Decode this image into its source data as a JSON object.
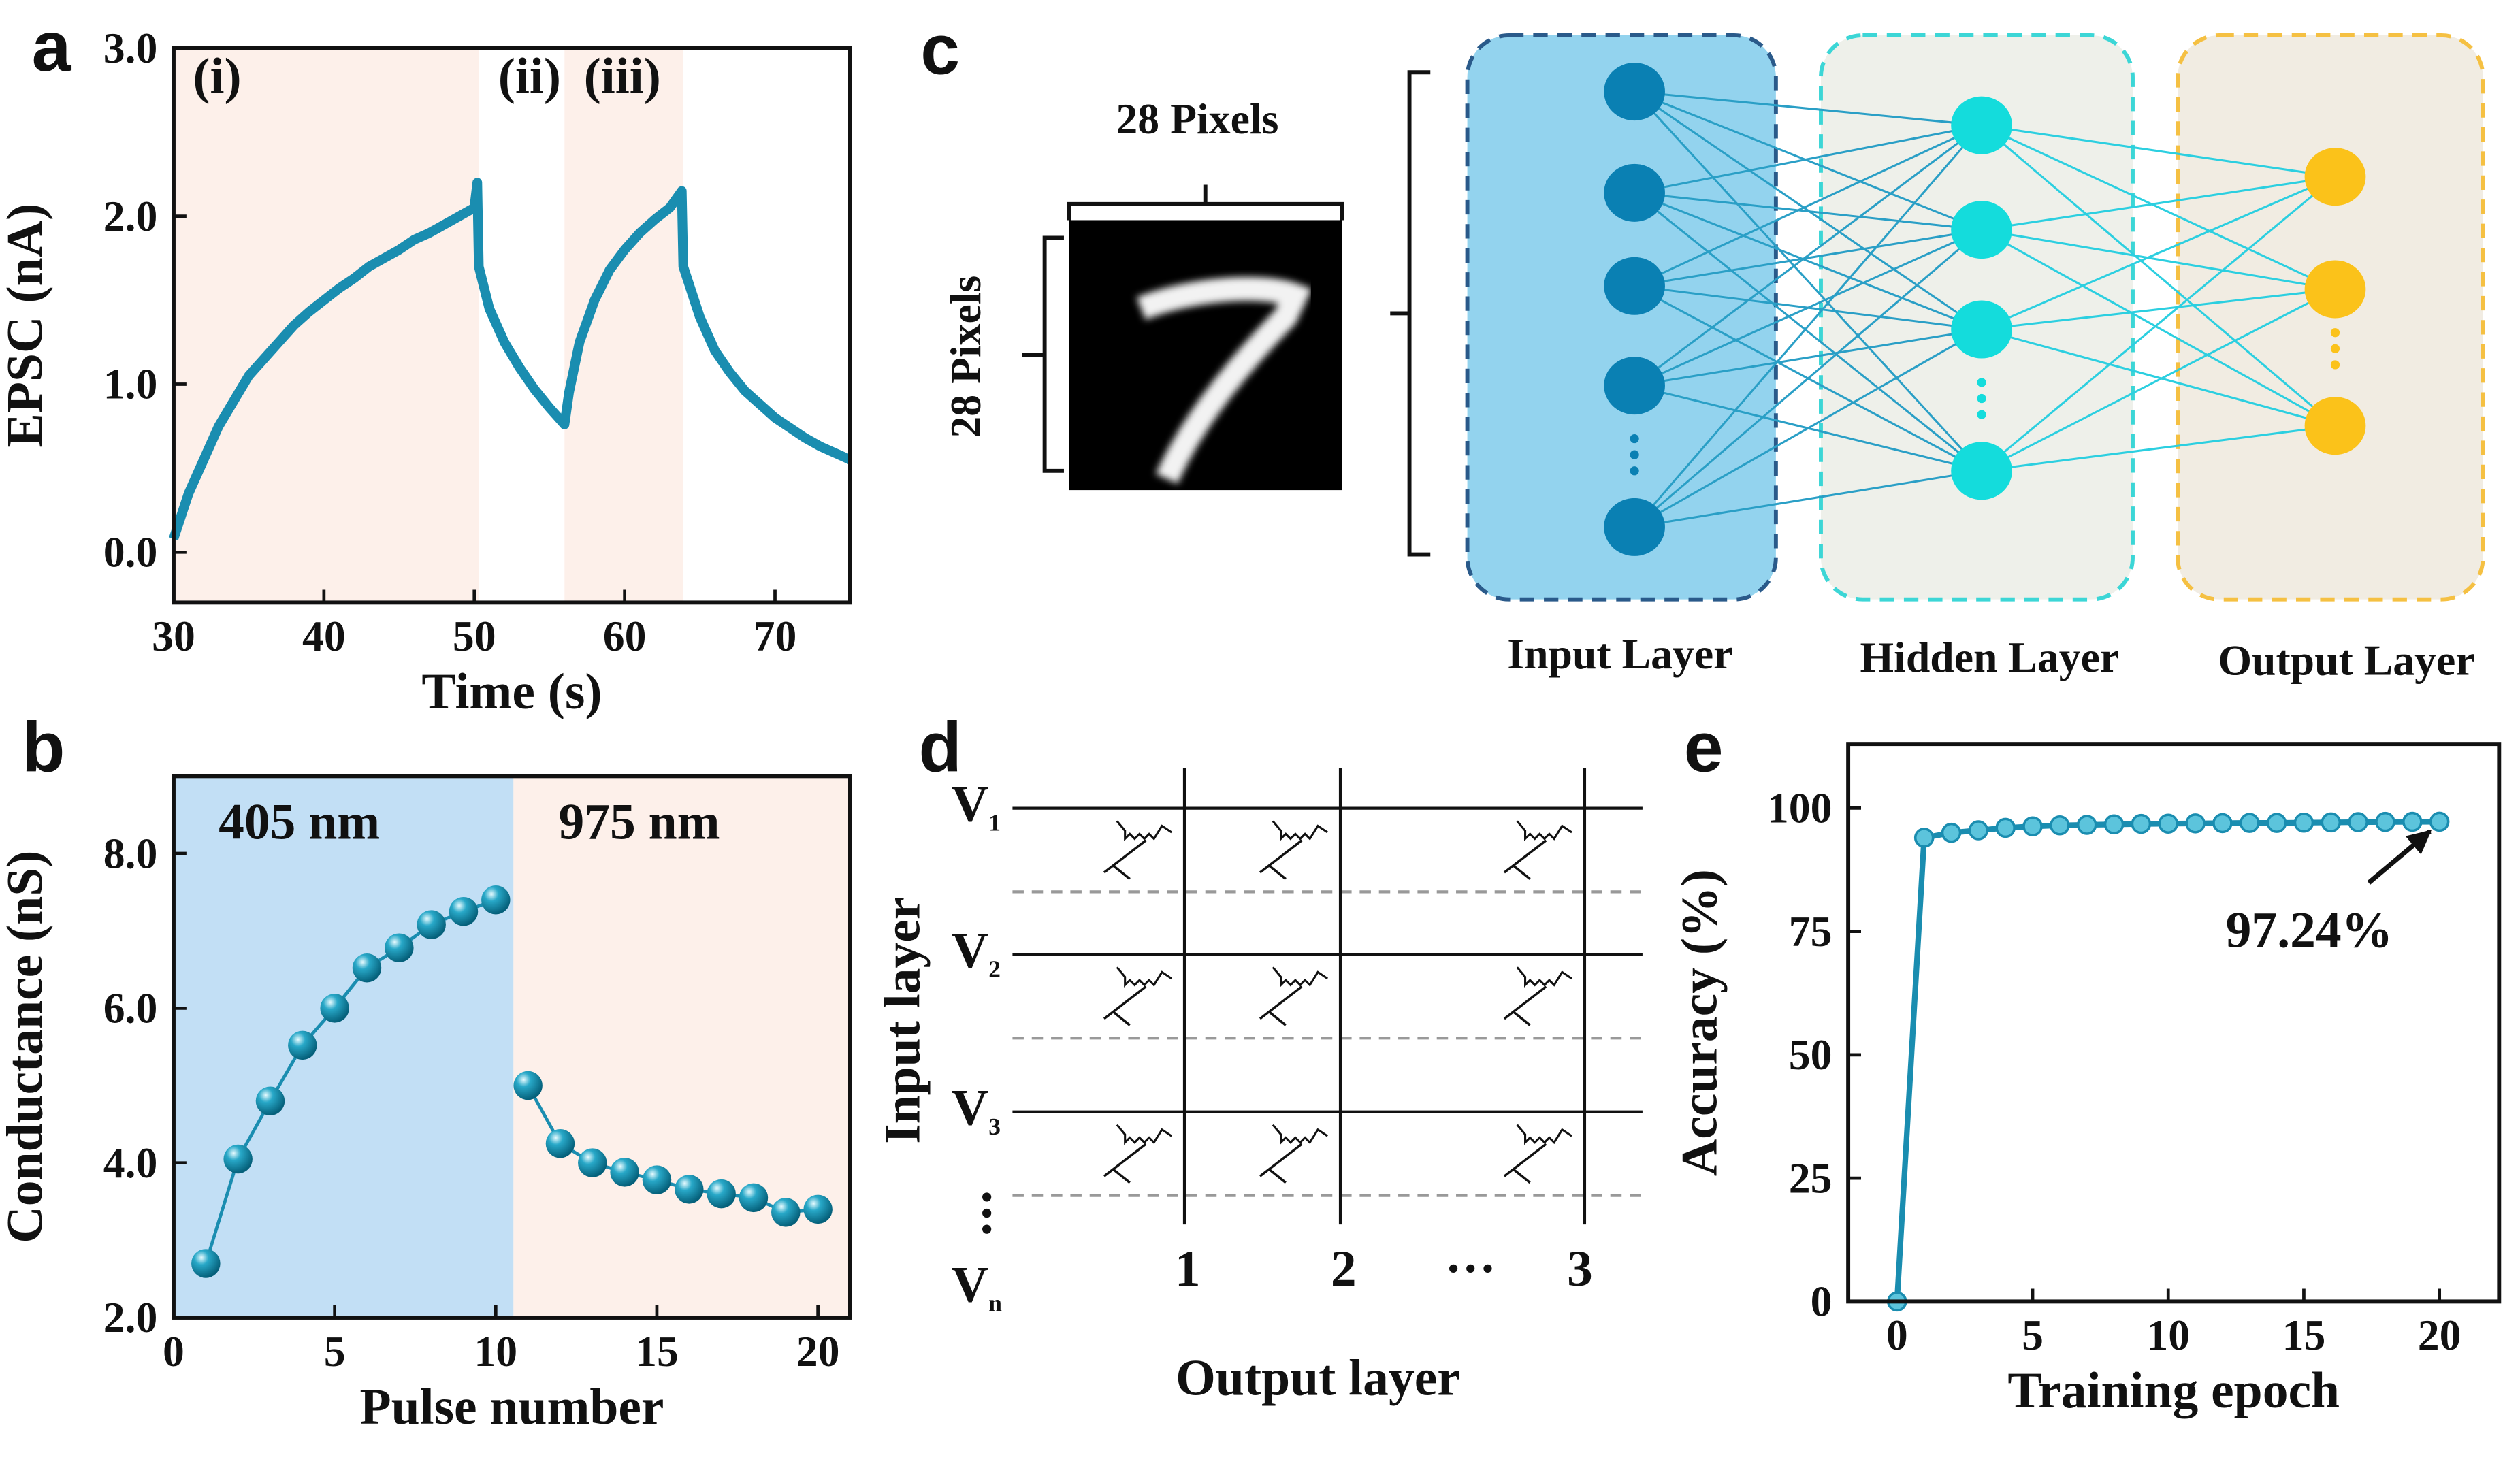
{
  "chart_data": [
    {
      "type": "line",
      "panel": "a",
      "x_label": "Time (s)",
      "y_label": "EPSC (nA)",
      "color": "#1a8db0",
      "xlim": [
        30,
        75
      ],
      "ylim": [
        -0.3,
        3.0
      ],
      "xticks": [
        30,
        40,
        50,
        60,
        70
      ],
      "yticks": [
        {
          "value": 0,
          "label": "0.0"
        },
        {
          "value": 1,
          "label": "1.0"
        },
        {
          "value": 2,
          "label": "2.0"
        },
        {
          "value": 3,
          "label": "3.0"
        }
      ],
      "regions": [
        {
          "label": "(i)",
          "start": 30,
          "end": 50.3,
          "color": "#fdf0ea"
        },
        {
          "label": "(ii)",
          "start": 50.3,
          "end": 56,
          "color": "#ffffff"
        },
        {
          "label": "(iii)",
          "start": 56,
          "end": 63.9,
          "color": "#fdf0ea"
        }
      ],
      "x": [
        30,
        31,
        32,
        33,
        34,
        35,
        36,
        37,
        38,
        39,
        40,
        41,
        42,
        43,
        44,
        45,
        46,
        47,
        48,
        49,
        50,
        50.2,
        50.3,
        51,
        52,
        53,
        54,
        55,
        56,
        56.3,
        57,
        58,
        59,
        60,
        61,
        62,
        63,
        63.8,
        63.9,
        65,
        66,
        67,
        68,
        69,
        70,
        71,
        72,
        73,
        74,
        75
      ],
      "values": [
        0.08,
        0.35,
        0.55,
        0.75,
        0.9,
        1.05,
        1.15,
        1.25,
        1.35,
        1.43,
        1.5,
        1.57,
        1.63,
        1.7,
        1.75,
        1.8,
        1.86,
        1.9,
        1.95,
        2.0,
        2.05,
        2.2,
        1.7,
        1.45,
        1.25,
        1.1,
        0.97,
        0.86,
        0.76,
        0.95,
        1.25,
        1.5,
        1.68,
        1.8,
        1.9,
        1.98,
        2.05,
        2.15,
        1.7,
        1.4,
        1.2,
        1.07,
        0.96,
        0.88,
        0.8,
        0.74,
        0.68,
        0.63,
        0.59,
        0.55
      ]
    },
    {
      "type": "line",
      "panel": "b",
      "x_label": "Pulse number",
      "y_label": "Conductance (nS)",
      "color": "#1a8db0",
      "markers": "sphere",
      "xlim": [
        0,
        21
      ],
      "ylim": [
        2,
        9
      ],
      "xticks": [
        0,
        5,
        10,
        15,
        20
      ],
      "yticks": [
        {
          "value": 2,
          "label": "2.0"
        },
        {
          "value": 4,
          "label": "4.0"
        },
        {
          "value": 6,
          "label": "6.0"
        },
        {
          "value": 8,
          "label": "8.0"
        }
      ],
      "regions": [
        {
          "label": "405 nm",
          "start": 0,
          "end": 10.55,
          "color": "#c2dff5",
          "x": [
            1,
            2,
            3,
            4,
            5,
            6,
            7,
            8,
            9,
            10
          ],
          "values": [
            2.7,
            4.05,
            4.8,
            5.52,
            6.0,
            6.52,
            6.78,
            7.08,
            7.25,
            7.4
          ]
        },
        {
          "label": "975 nm",
          "start": 10.55,
          "end": 21,
          "color": "#fdf0ea",
          "x": [
            11,
            12,
            13,
            14,
            15,
            16,
            17,
            18,
            19,
            20
          ],
          "values": [
            5.0,
            4.25,
            4.0,
            3.88,
            3.78,
            3.66,
            3.6,
            3.55,
            3.36,
            3.4
          ]
        }
      ]
    },
    {
      "type": "line",
      "panel": "e",
      "x_label": "Training epoch",
      "y_label": "Accuracy (%)",
      "color": "#1a8db0",
      "markers": "dot",
      "xlim": [
        -1.8,
        22.2
      ],
      "ylim": [
        0,
        113
      ],
      "xticks": [
        0,
        5,
        10,
        15,
        20
      ],
      "yticks": [
        0,
        25,
        50,
        75,
        100
      ],
      "annotation": "97.24%",
      "x": [
        0,
        1,
        2,
        3,
        4,
        5,
        6,
        7,
        8,
        9,
        10,
        11,
        12,
        13,
        14,
        15,
        16,
        17,
        18,
        19,
        20
      ],
      "values": [
        0,
        94,
        95,
        95.5,
        96,
        96.3,
        96.5,
        96.6,
        96.7,
        96.8,
        96.85,
        96.9,
        96.95,
        97,
        97,
        97.05,
        97.1,
        97.15,
        97.2,
        97.22,
        97.24
      ]
    }
  ],
  "diagram_c": {
    "panel": "c",
    "image_width_label": "28 Pixels",
    "image_height_label": "28 Pixels",
    "layers": [
      "Input Layer",
      "Hidden Layer",
      "Output Layer"
    ]
  },
  "diagram_d": {
    "panel": "d",
    "row_labels": [
      {
        "text": "V",
        "subscript": "1"
      },
      {
        "text": "V",
        "subscript": "2"
      },
      {
        "text": "V",
        "subscript": "3"
      },
      {
        "text": "V",
        "subscript": "n"
      }
    ],
    "column_labels": [
      "1",
      "2",
      "···",
      "3"
    ],
    "y_label": "Input layer",
    "x_label": "Output layer"
  }
}
